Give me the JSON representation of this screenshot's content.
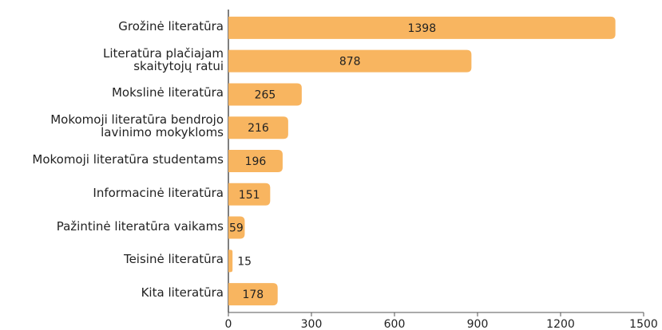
{
  "chart_data": {
    "type": "barh",
    "categories": [
      "Grožinė literatūra",
      "Literatūra plačiajam\nskaitytojų ratui",
      "Mokslinė literatūra",
      "Mokomoji literatūra bendrojo\nlavinimo mokykloms",
      "Mokomoji literatūra studentams",
      "Informacinė literatūra",
      "Pažintinė literatūra vaikams",
      "Teisinė literatūra",
      "Kita literatūra"
    ],
    "values": [
      1398,
      878,
      265,
      216,
      196,
      151,
      59,
      15,
      178
    ],
    "color": "#f8b560",
    "xlim": [
      0,
      1500
    ],
    "xticks": [
      0,
      300,
      600,
      900,
      1200,
      1500
    ]
  }
}
